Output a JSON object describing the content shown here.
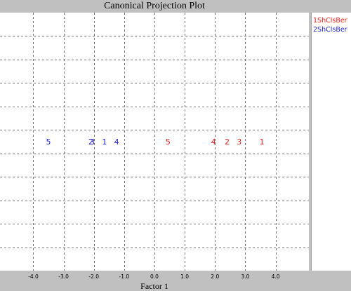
{
  "window": {
    "title": "Canonical Projection Plot"
  },
  "chart_data": {
    "type": "scatter",
    "title": "Canonical Projection Plot",
    "xlabel": "Factor 1",
    "ylabel": "",
    "xlim": [
      -5.1,
      5.1
    ],
    "ylim": [
      -1,
      1
    ],
    "xticks": [
      "-4.0",
      "-3.0",
      "-2.0",
      "-1.0",
      "0.0",
      "1.0",
      "2.0",
      "3.0",
      "4.0"
    ],
    "xtick_values": [
      -4,
      -3,
      -2,
      -1,
      0,
      1,
      2,
      3,
      4
    ],
    "grid": true,
    "legend": "right",
    "series": [
      {
        "name": "1ShClsBer",
        "color": "#e8201c",
        "points": [
          {
            "label": "5",
            "x": 0.45,
            "y": 0
          },
          {
            "label": "4",
            "x": 1.95,
            "y": 0
          },
          {
            "label": "2",
            "x": 2.4,
            "y": 0
          },
          {
            "label": "3",
            "x": 2.8,
            "y": 0
          },
          {
            "label": "1",
            "x": 3.55,
            "y": 0
          }
        ]
      },
      {
        "name": "2ShClsBer",
        "color": "#1f1fd8",
        "points": [
          {
            "label": "5",
            "x": -3.5,
            "y": 0
          },
          {
            "label": "2",
            "x": -2.1,
            "y": 0
          },
          {
            "label": "3",
            "x": -2.05,
            "y": 0
          },
          {
            "label": "1",
            "x": -1.65,
            "y": 0
          },
          {
            "label": "4",
            "x": -1.25,
            "y": 0
          }
        ]
      }
    ]
  }
}
